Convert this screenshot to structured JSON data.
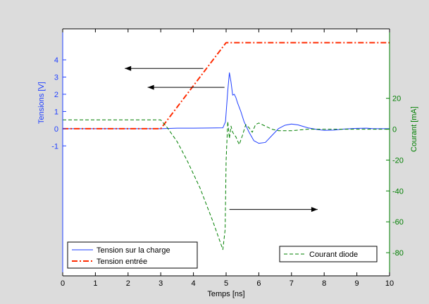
{
  "chart_data": {
    "type": "line",
    "xlabel": "Temps [ns]",
    "xlim": [
      0,
      10
    ],
    "xticks": [
      0,
      1,
      2,
      3,
      4,
      5,
      6,
      7,
      8,
      9,
      10
    ],
    "left_axis": {
      "label": "Tensions [V]",
      "ylim": [
        -8.55,
        5.8
      ],
      "ticks": [
        -1,
        0,
        1,
        2,
        3,
        4
      ],
      "color": "#1f3fff"
    },
    "right_axis": {
      "label": "Courant [mA]",
      "ylim": [
        -95,
        65
      ],
      "ticks": [
        -80,
        -60,
        -40,
        -20,
        0,
        20
      ],
      "color": "#007f00"
    },
    "grid": false,
    "series": [
      {
        "name": "Tension sur la charge",
        "axis": "left",
        "color": "#1f3fff",
        "style": "solid",
        "x": [
          0,
          3.0,
          3.5,
          4.0,
          4.5,
          4.9,
          4.98,
          5.05,
          5.1,
          5.15,
          5.2,
          5.25,
          5.3,
          5.35,
          5.45,
          5.55,
          5.7,
          5.85,
          6.0,
          6.2,
          6.4,
          6.6,
          6.8,
          7.0,
          7.2,
          7.5,
          7.8,
          8.0,
          8.3,
          8.6,
          9.0,
          9.3,
          9.5,
          10
        ],
        "y": [
          0,
          0,
          0.03,
          0.03,
          0.04,
          0.05,
          0.4,
          2.2,
          3.25,
          2.7,
          1.95,
          2.0,
          1.8,
          1.5,
          1.0,
          0.4,
          -0.2,
          -0.7,
          -0.85,
          -0.8,
          -0.4,
          0.0,
          0.2,
          0.27,
          0.22,
          0.05,
          -0.05,
          -0.1,
          -0.08,
          -0.02,
          0.02,
          0.03,
          0.0,
          0.0
        ]
      },
      {
        "name": "Tension entrée",
        "axis": "left",
        "color": "#ff2a00",
        "style": "dashdot",
        "x": [
          0,
          3.0,
          5.0,
          10
        ],
        "y": [
          0,
          0,
          5.0,
          5.0
        ]
      },
      {
        "name": "Courant diode",
        "axis": "right",
        "color": "#007f00",
        "style": "dashed",
        "x": [
          0,
          3.0,
          3.2,
          3.5,
          3.8,
          4.2,
          4.6,
          4.9,
          4.97,
          5.0,
          5.05,
          5.1,
          5.15,
          5.2,
          5.3,
          5.4,
          5.5,
          5.6,
          5.7,
          5.8,
          5.9,
          6.0,
          6.2,
          6.4,
          6.6,
          7.0,
          7.5,
          8.0,
          9.0,
          10
        ],
        "y": [
          6,
          6,
          1,
          -8,
          -20,
          -38,
          -60,
          -78,
          -65,
          -20,
          5,
          -6,
          2,
          -2,
          -5,
          -10,
          -4,
          3,
          1,
          -2,
          3,
          4,
          2,
          0,
          -1,
          -1,
          0,
          0,
          0,
          0
        ]
      }
    ],
    "annotations": [
      {
        "type": "arrow",
        "axis": "left",
        "from": [
          4.3,
          3.5
        ],
        "to": [
          1.9,
          3.5
        ]
      },
      {
        "type": "arrow",
        "axis": "left",
        "from": [
          4.95,
          2.4
        ],
        "to": [
          2.6,
          2.4
        ]
      },
      {
        "type": "arrow",
        "axis": "right",
        "from": [
          5.1,
          -52
        ],
        "to": [
          7.8,
          -52
        ]
      }
    ],
    "legends": [
      {
        "position": "bottom-left",
        "entries": [
          "Tension sur la charge",
          "Tension entrée"
        ]
      },
      {
        "position": "bottom-right",
        "entries": [
          "Courant diode"
        ]
      }
    ]
  }
}
